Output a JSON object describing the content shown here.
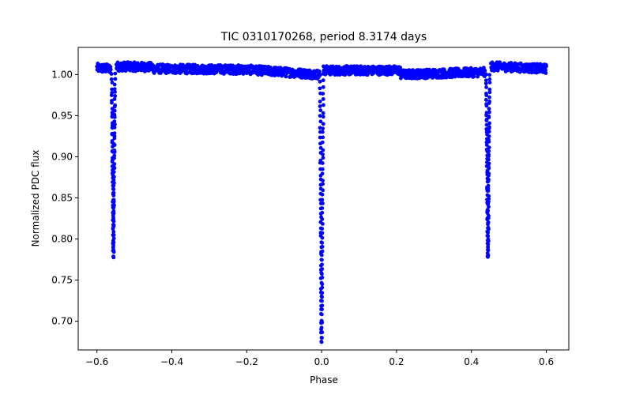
{
  "chart_data": {
    "type": "scatter",
    "title": "TIC 0310170268, period 8.3174 days",
    "xlabel": "Phase",
    "ylabel": "Normalized PDC flux",
    "xlim": [
      -0.65,
      0.66
    ],
    "ylim": [
      0.665,
      1.033
    ],
    "xticks": [
      -0.6,
      -0.4,
      -0.2,
      0.0,
      0.2,
      0.4,
      0.6
    ],
    "xtick_labels": [
      "−0.6",
      "−0.4",
      "−0.2",
      "0.0",
      "0.2",
      "0.4",
      "0.6"
    ],
    "yticks": [
      0.7,
      0.75,
      0.8,
      0.85,
      0.9,
      0.95,
      1.0
    ],
    "ytick_labels": [
      "0.70",
      "0.75",
      "0.80",
      "0.85",
      "0.90",
      "0.95",
      "1.00"
    ],
    "grid": false,
    "marker_color": "#0000ff",
    "series": [
      {
        "name": "flux",
        "phase_range": [
          -0.6,
          0.6
        ],
        "baseline_segments": [
          {
            "x": [
              -0.6,
              -0.563
            ],
            "y": [
              1.008,
              1.007
            ]
          },
          {
            "x": [
              -0.548,
              -0.45
            ],
            "y": [
              1.01,
              1.009
            ]
          },
          {
            "x": [
              -0.45,
              -0.2
            ],
            "y": [
              1.007,
              1.006
            ]
          },
          {
            "x": [
              -0.2,
              -0.005
            ],
            "y": [
              1.006,
              1.0
            ]
          },
          {
            "x": [
              0.005,
              0.21
            ],
            "y": [
              1.005,
              1.005
            ]
          },
          {
            "x": [
              0.21,
              0.436
            ],
            "y": [
              1.0,
              1.003
            ]
          },
          {
            "x": [
              0.452,
              0.6
            ],
            "y": [
              1.01,
              1.007
            ]
          }
        ],
        "eclipses": [
          {
            "center": -0.556,
            "depth_min": 0.775,
            "width": 0.008
          },
          {
            "center": 0.0,
            "depth_min": 0.672,
            "width": 0.008
          },
          {
            "center": 0.444,
            "depth_min": 0.775,
            "width": 0.008
          }
        ]
      }
    ]
  }
}
